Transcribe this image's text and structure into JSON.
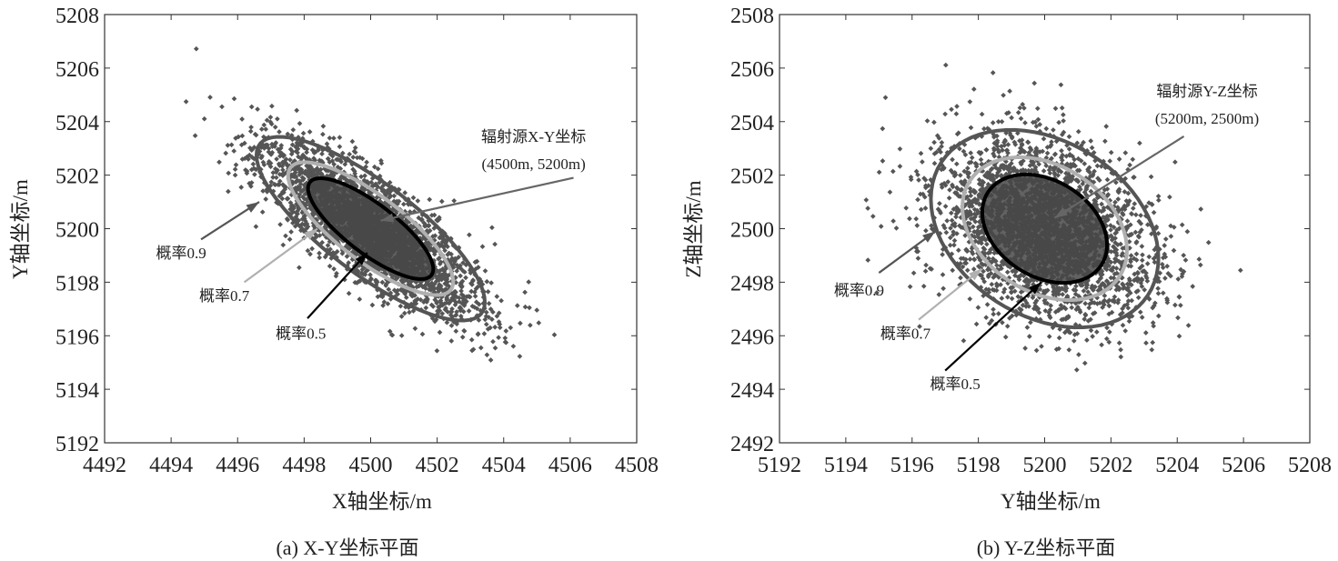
{
  "chart_data": [
    {
      "type": "scatter",
      "panel": "a",
      "caption": "(a)  X-Y坐标平面",
      "xlabel": "X轴坐标/m",
      "ylabel": "Y轴坐标/m",
      "xlim": [
        4492,
        4508
      ],
      "ylim": [
        5192,
        5208
      ],
      "xticks": [
        4492,
        4494,
        4496,
        4498,
        4500,
        4502,
        4504,
        4506,
        4508
      ],
      "yticks": [
        5192,
        5194,
        5196,
        5198,
        5200,
        5202,
        5204,
        5206,
        5208
      ],
      "grid": false,
      "point_color": "#555555",
      "distribution": {
        "mean": [
          4500,
          5200
        ],
        "sigma": [
          1.6,
          1.6
        ],
        "rho": -0.8,
        "n_points": 3000,
        "seed": 11
      },
      "ellipses": [
        {
          "probability": 0.9,
          "color": "#555555"
        },
        {
          "probability": 0.7,
          "color": "#b0b0b0"
        },
        {
          "probability": 0.5,
          "color": "#000000"
        }
      ],
      "annotations": [
        {
          "lines": [
            "辐射源X-Y坐标",
            "(4500m, 5200m)"
          ],
          "at": [
            4504.9,
            5203.45
          ],
          "arrow_from": [
            4506.1,
            5201.9
          ],
          "arrow_to": [
            4500.3,
            5200.3
          ],
          "color": "#666666"
        },
        {
          "lines": [
            "概率0.9"
          ],
          "at": [
            4494.3,
            5199.1
          ],
          "arrow_from": [
            4494.9,
            5199.6
          ],
          "arrow_to": [
            4496.65,
            5201.0
          ],
          "color": "#555555"
        },
        {
          "lines": [
            "概率0.7"
          ],
          "at": [
            4495.6,
            5197.5
          ],
          "arrow_from": [
            4496.2,
            5198.0
          ],
          "arrow_to": [
            4498.4,
            5200.0
          ],
          "color": "#b0b0b0"
        },
        {
          "lines": [
            "概率0.5"
          ],
          "at": [
            4497.9,
            5196.1
          ],
          "arrow_from": [
            4498.1,
            5196.65
          ],
          "arrow_to": [
            4499.9,
            5199.1
          ],
          "color": "#000000"
        }
      ]
    },
    {
      "type": "scatter",
      "panel": "b",
      "caption": "(b)  Y-Z坐标平面",
      "xlabel": "Y轴坐标/m",
      "ylabel": "Z轴坐标/m",
      "xlim": [
        5192,
        5208
      ],
      "ylim": [
        2492,
        2508
      ],
      "xticks": [
        5192,
        5194,
        5196,
        5198,
        5200,
        5202,
        5204,
        5206,
        5208
      ],
      "yticks": [
        2492,
        2494,
        2496,
        2498,
        2500,
        2502,
        2504,
        2506,
        2508
      ],
      "grid": false,
      "point_color": "#555555",
      "distribution": {
        "mean": [
          5200,
          2500
        ],
        "sigma": [
          1.6,
          1.72
        ],
        "rho": -0.3,
        "n_points": 3000,
        "seed": 29
      },
      "ellipses": [
        {
          "probability": 0.9,
          "color": "#555555"
        },
        {
          "probability": 0.7,
          "color": "#b0b0b0"
        },
        {
          "probability": 0.5,
          "color": "#000000"
        }
      ],
      "annotations": [
        {
          "lines": [
            "辐射源Y-Z坐标",
            "(5200m, 2500m)"
          ],
          "at": [
            5204.9,
            2505.15
          ],
          "arrow_from": [
            5204.2,
            2503.45
          ],
          "arrow_to": [
            5200.3,
            2500.4
          ],
          "color": "#666666"
        },
        {
          "lines": [
            "概率0.9"
          ],
          "at": [
            5194.4,
            2497.7
          ],
          "arrow_from": [
            5195.0,
            2498.35
          ],
          "arrow_to": [
            5196.7,
            2499.9
          ],
          "color": "#555555"
        },
        {
          "lines": [
            "概率0.7"
          ],
          "at": [
            5195.8,
            2496.1
          ],
          "arrow_from": [
            5196.2,
            2496.6
          ],
          "arrow_to": [
            5198.1,
            2498.5
          ],
          "color": "#b0b0b0"
        },
        {
          "lines": [
            "概率0.5"
          ],
          "at": [
            5197.3,
            2494.2
          ],
          "arrow_from": [
            5197.0,
            2494.7
          ],
          "arrow_to": [
            5199.9,
            2498.0
          ],
          "color": "#000000"
        }
      ]
    }
  ]
}
